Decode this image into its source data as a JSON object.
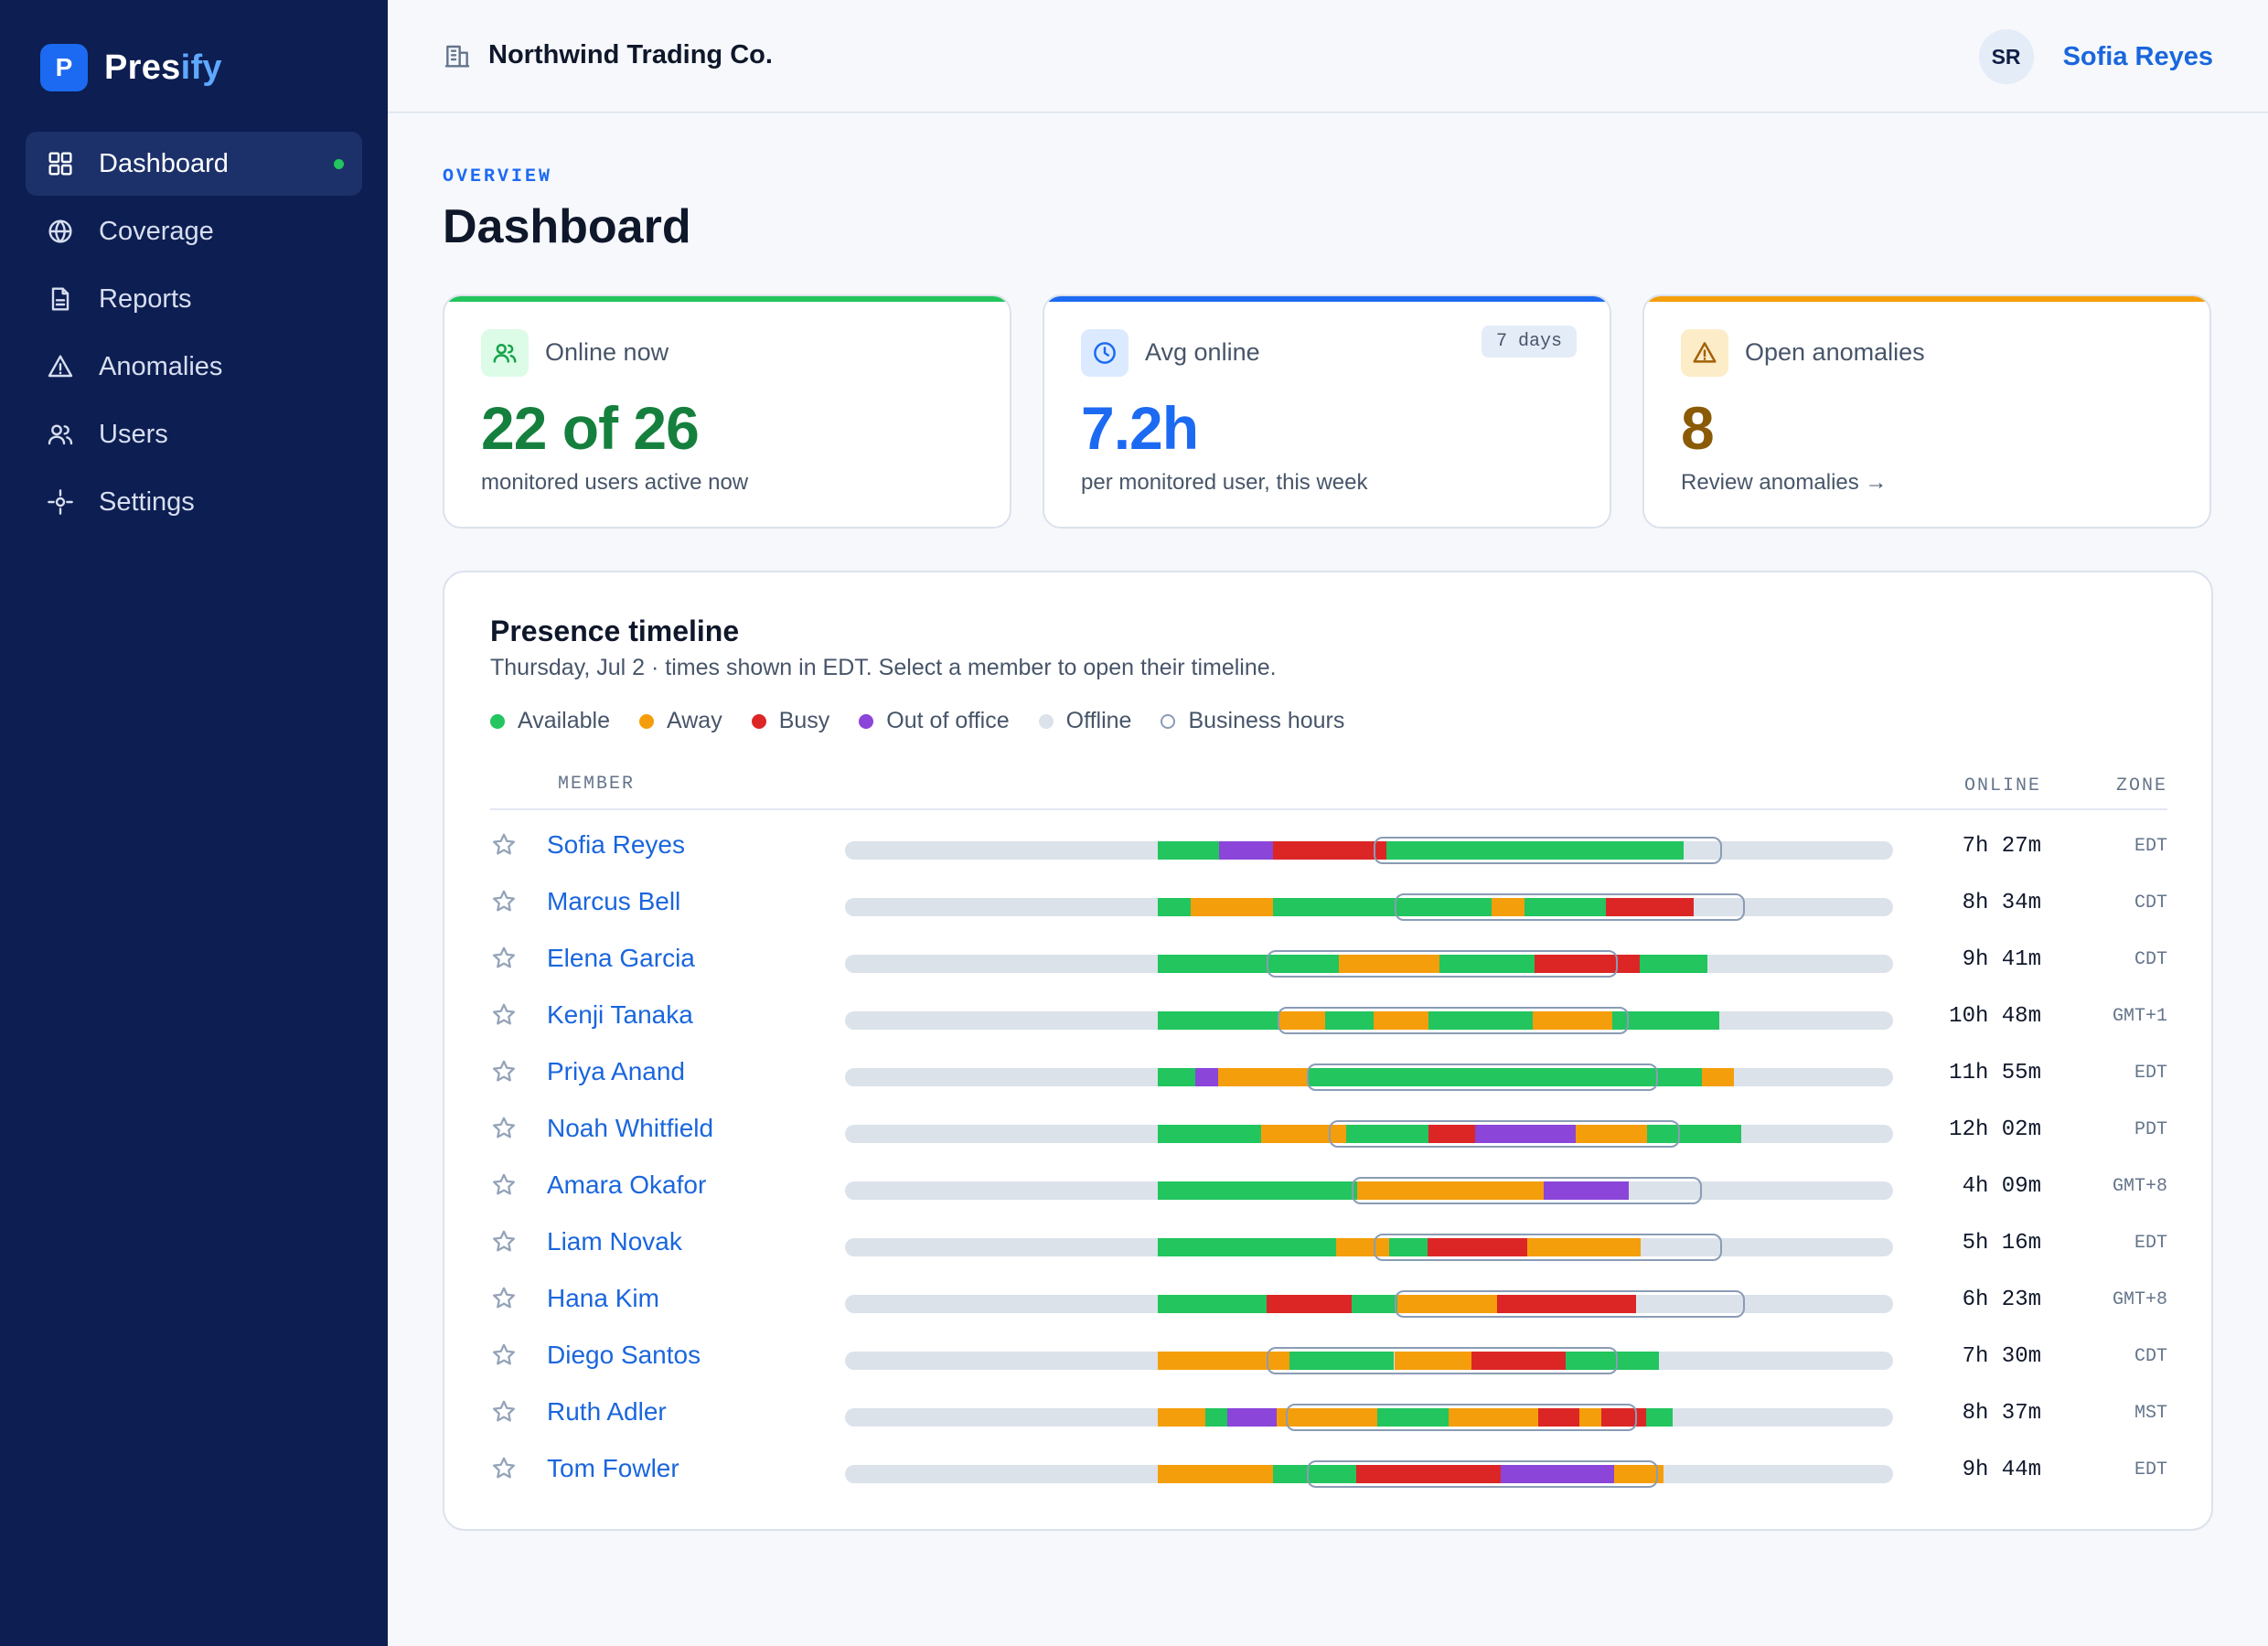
{
  "brand": {
    "logo_letter": "P",
    "name_main": "Pres",
    "name_accent": "ify"
  },
  "sidebar": {
    "items": [
      {
        "label": "Dashboard",
        "icon": "grid-icon",
        "active": true
      },
      {
        "label": "Coverage",
        "icon": "globe-icon"
      },
      {
        "label": "Reports",
        "icon": "document-icon"
      },
      {
        "label": "Anomalies",
        "icon": "warning-icon"
      },
      {
        "label": "Users",
        "icon": "users-icon"
      },
      {
        "label": "Settings",
        "icon": "settings-icon"
      }
    ]
  },
  "header": {
    "org_name": "Northwind Trading Co.",
    "user_initials": "SR",
    "user_name": "Sofia Reyes"
  },
  "page": {
    "eyebrow": "OVERVIEW",
    "title": "Dashboard"
  },
  "cards": [
    {
      "label": "Online now",
      "value": "22 of 26",
      "sub": "monitored users active now",
      "accent": "#22c55e",
      "value_color": "#15803d",
      "icon": "users-icon"
    },
    {
      "label": "Avg online",
      "value": "7.2h",
      "sub": "per monitored user, this week",
      "badge": "7 days",
      "accent": "#1d6af2",
      "value_color": "#1d6af2",
      "icon": "clock-icon"
    },
    {
      "label": "Open anomalies",
      "value": "8",
      "sub": "Review anomalies →",
      "accent": "#f59e0b",
      "value_color": "#8a5a06",
      "icon": "warning-icon"
    }
  ],
  "timeline": {
    "title": "Presence timeline",
    "subtitle": "Thursday, Jul 2 · times shown in EDT. Select a member to open their timeline.",
    "legend": [
      {
        "label": "Available",
        "color": "#22c55e",
        "status": "available"
      },
      {
        "label": "Away",
        "color": "#f59e0b",
        "status": "away"
      },
      {
        "label": "Busy",
        "color": "#dc2626",
        "status": "busy"
      },
      {
        "label": "Out of office",
        "color": "#8b45d9",
        "status": "ooo"
      },
      {
        "label": "Offline",
        "color": "#dbe2ea",
        "status": "offline"
      },
      {
        "label": "Business hours",
        "color": "#8a9cb5",
        "status": "business-hours"
      }
    ],
    "columns": {
      "member": "MEMBER",
      "online": "ONLINE",
      "zone": "ZONE"
    },
    "members": [
      {
        "name": "Sofia Reyes",
        "online": "7h 27m",
        "zone": "EDT",
        "business_hours": [
          0.504,
          0.837
        ],
        "segments": [
          [
            0.298,
            0.357,
            "available"
          ],
          [
            0.357,
            0.408,
            "ooo"
          ],
          [
            0.408,
            0.517,
            "busy"
          ],
          [
            0.517,
            0.8,
            "available"
          ]
        ]
      },
      {
        "name": "Marcus Bell",
        "online": "8h 34m",
        "zone": "CDT",
        "business_hours": [
          0.524,
          0.859
        ],
        "segments": [
          [
            0.298,
            0.33,
            "available"
          ],
          [
            0.33,
            0.408,
            "away"
          ],
          [
            0.408,
            0.617,
            "available"
          ],
          [
            0.617,
            0.648,
            "away"
          ],
          [
            0.648,
            0.726,
            "available"
          ],
          [
            0.726,
            0.81,
            "busy"
          ]
        ]
      },
      {
        "name": "Elena Garcia",
        "online": "9h 41m",
        "zone": "CDT",
        "business_hours": [
          0.402,
          0.737
        ],
        "segments": [
          [
            0.298,
            0.471,
            "available"
          ],
          [
            0.471,
            0.567,
            "away"
          ],
          [
            0.567,
            0.658,
            "available"
          ],
          [
            0.658,
            0.739,
            "busy"
          ],
          [
            0.739,
            0.758,
            "busy"
          ],
          [
            0.758,
            0.823,
            "available"
          ]
        ]
      },
      {
        "name": "Kenji Tanaka",
        "online": "10h 48m",
        "zone": "GMT+1",
        "business_hours": [
          0.413,
          0.748
        ],
        "segments": [
          [
            0.298,
            0.414,
            "available"
          ],
          [
            0.414,
            0.458,
            "away"
          ],
          [
            0.458,
            0.504,
            "available"
          ],
          [
            0.504,
            0.557,
            "away"
          ],
          [
            0.557,
            0.656,
            "available"
          ],
          [
            0.656,
            0.732,
            "away"
          ],
          [
            0.732,
            0.834,
            "available"
          ]
        ]
      },
      {
        "name": "Priya Anand",
        "online": "11h 55m",
        "zone": "EDT",
        "business_hours": [
          0.441,
          0.776
        ],
        "segments": [
          [
            0.298,
            0.334,
            "available"
          ],
          [
            0.334,
            0.356,
            "ooo"
          ],
          [
            0.356,
            0.442,
            "away"
          ],
          [
            0.442,
            0.776,
            "available"
          ],
          [
            0.776,
            0.818,
            "available"
          ],
          [
            0.818,
            0.848,
            "away"
          ]
        ]
      },
      {
        "name": "Noah Whitfield",
        "online": "12h 02m",
        "zone": "PDT",
        "business_hours": [
          0.462,
          0.797
        ],
        "segments": [
          [
            0.298,
            0.397,
            "available"
          ],
          [
            0.397,
            0.478,
            "away"
          ],
          [
            0.478,
            0.557,
            "available"
          ],
          [
            0.557,
            0.601,
            "busy"
          ],
          [
            0.601,
            0.697,
            "ooo"
          ],
          [
            0.697,
            0.765,
            "away"
          ],
          [
            0.765,
            0.855,
            "available"
          ]
        ]
      },
      {
        "name": "Amara Okafor",
        "online": "4h 09m",
        "zone": "GMT+8",
        "business_hours": [
          0.483,
          0.818
        ],
        "segments": [
          [
            0.298,
            0.489,
            "available"
          ],
          [
            0.489,
            0.667,
            "away"
          ],
          [
            0.667,
            0.748,
            "ooo"
          ]
        ]
      },
      {
        "name": "Liam Novak",
        "online": "5h 16m",
        "zone": "EDT",
        "business_hours": [
          0.504,
          0.837
        ],
        "segments": [
          [
            0.298,
            0.469,
            "available"
          ],
          [
            0.469,
            0.519,
            "away"
          ],
          [
            0.519,
            0.556,
            "available"
          ],
          [
            0.556,
            0.651,
            "busy"
          ],
          [
            0.651,
            0.759,
            "away"
          ]
        ]
      },
      {
        "name": "Hana Kim",
        "online": "6h 23m",
        "zone": "GMT+8",
        "business_hours": [
          0.524,
          0.859
        ],
        "segments": [
          [
            0.298,
            0.402,
            "available"
          ],
          [
            0.402,
            0.483,
            "busy"
          ],
          [
            0.483,
            0.527,
            "available"
          ],
          [
            0.527,
            0.622,
            "away"
          ],
          [
            0.622,
            0.755,
            "busy"
          ]
        ]
      },
      {
        "name": "Diego Santos",
        "online": "7h 30m",
        "zone": "CDT",
        "business_hours": [
          0.402,
          0.737
        ],
        "segments": [
          [
            0.298,
            0.424,
            "away"
          ],
          [
            0.424,
            0.524,
            "available"
          ],
          [
            0.524,
            0.598,
            "away"
          ],
          [
            0.598,
            0.688,
            "busy"
          ],
          [
            0.688,
            0.777,
            "available"
          ]
        ]
      },
      {
        "name": "Ruth Adler",
        "online": "8h 37m",
        "zone": "MST",
        "business_hours": [
          0.421,
          0.756
        ],
        "segments": [
          [
            0.298,
            0.344,
            "away"
          ],
          [
            0.344,
            0.365,
            "available"
          ],
          [
            0.365,
            0.412,
            "ooo"
          ],
          [
            0.412,
            0.508,
            "away"
          ],
          [
            0.508,
            0.576,
            "available"
          ],
          [
            0.576,
            0.661,
            "away"
          ],
          [
            0.661,
            0.701,
            "busy"
          ],
          [
            0.701,
            0.722,
            "away"
          ],
          [
            0.722,
            0.764,
            "busy"
          ],
          [
            0.764,
            0.79,
            "available"
          ]
        ]
      },
      {
        "name": "Tom Fowler",
        "online": "9h 44m",
        "zone": "EDT",
        "business_hours": [
          0.441,
          0.776
        ],
        "segments": [
          [
            0.298,
            0.408,
            "away"
          ],
          [
            0.408,
            0.488,
            "available"
          ],
          [
            0.488,
            0.626,
            "busy"
          ],
          [
            0.626,
            0.734,
            "ooo"
          ],
          [
            0.734,
            0.781,
            "away"
          ]
        ]
      }
    ]
  }
}
